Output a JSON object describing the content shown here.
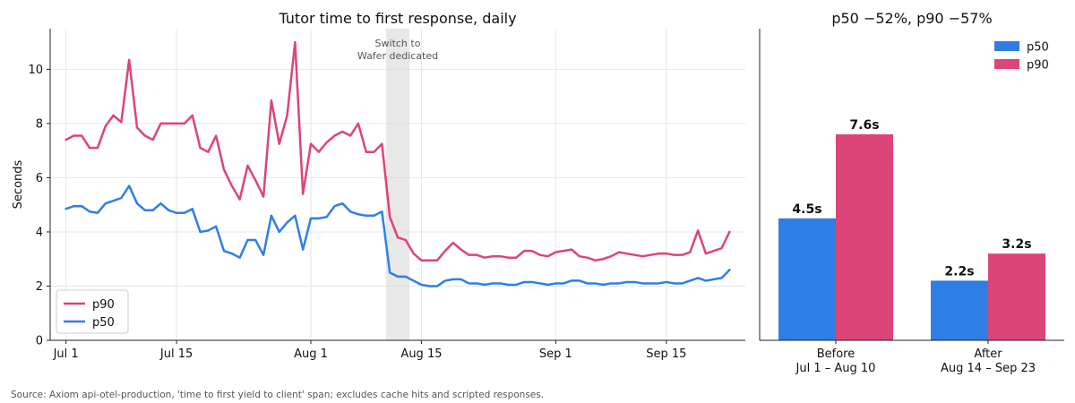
{
  "footnote": "Source: Axiom api-otel-production, 'time to first yield to client' span; excludes cache hits and scripted responses.",
  "chart_data": [
    {
      "type": "line",
      "title": "Tutor time to first response, daily",
      "xlabel": "",
      "ylabel": "Seconds",
      "ylim": [
        0,
        11.5
      ],
      "yticks": [
        0,
        2,
        4,
        6,
        8,
        10
      ],
      "xticks": [
        {
          "date": "2024-07-01",
          "label": "Jul 1"
        },
        {
          "date": "2024-07-15",
          "label": "Jul 15"
        },
        {
          "date": "2024-08-01",
          "label": "Aug 1"
        },
        {
          "date": "2024-08-15",
          "label": "Aug 15"
        },
        {
          "date": "2024-09-01",
          "label": "Sep 1"
        },
        {
          "date": "2024-09-15",
          "label": "Sep 15"
        }
      ],
      "grid": true,
      "legend": "bottom-left",
      "annotation": {
        "lines": [
          "Switch to",
          "Wafer dedicated"
        ],
        "x_start": "2024-08-11",
        "x_end": "2024-08-13"
      },
      "x": [
        "2024-07-01",
        "2024-07-02",
        "2024-07-03",
        "2024-07-04",
        "2024-07-05",
        "2024-07-06",
        "2024-07-07",
        "2024-07-08",
        "2024-07-09",
        "2024-07-10",
        "2024-07-11",
        "2024-07-12",
        "2024-07-13",
        "2024-07-14",
        "2024-07-15",
        "2024-07-16",
        "2024-07-17",
        "2024-07-18",
        "2024-07-19",
        "2024-07-20",
        "2024-07-21",
        "2024-07-22",
        "2024-07-23",
        "2024-07-24",
        "2024-07-25",
        "2024-07-26",
        "2024-07-27",
        "2024-07-28",
        "2024-07-29",
        "2024-07-30",
        "2024-07-31",
        "2024-08-01",
        "2024-08-02",
        "2024-08-03",
        "2024-08-04",
        "2024-08-05",
        "2024-08-06",
        "2024-08-07",
        "2024-08-08",
        "2024-08-09",
        "2024-08-10",
        "2024-08-11",
        "2024-08-12",
        "2024-08-13",
        "2024-08-14",
        "2024-08-15",
        "2024-08-16",
        "2024-08-17",
        "2024-08-18",
        "2024-08-19",
        "2024-08-20",
        "2024-08-21",
        "2024-08-22",
        "2024-08-23",
        "2024-08-24",
        "2024-08-25",
        "2024-08-26",
        "2024-08-27",
        "2024-08-28",
        "2024-08-29",
        "2024-08-30",
        "2024-08-31",
        "2024-09-01",
        "2024-09-02",
        "2024-09-03",
        "2024-09-04",
        "2024-09-05",
        "2024-09-06",
        "2024-09-07",
        "2024-09-08",
        "2024-09-09",
        "2024-09-10",
        "2024-09-11",
        "2024-09-12",
        "2024-09-13",
        "2024-09-14",
        "2024-09-15",
        "2024-09-16",
        "2024-09-17",
        "2024-09-18",
        "2024-09-19",
        "2024-09-20",
        "2024-09-21",
        "2024-09-22",
        "2024-09-23"
      ],
      "series": [
        {
          "name": "p90",
          "color": "#dd4477",
          "values": [
            7.4,
            7.55,
            7.55,
            7.1,
            7.1,
            7.9,
            8.3,
            8.05,
            10.35,
            7.85,
            7.55,
            7.4,
            8.0,
            8.0,
            8.0,
            8.0,
            8.3,
            7.1,
            6.95,
            7.55,
            6.3,
            5.7,
            5.2,
            6.45,
            5.9,
            5.3,
            8.85,
            7.25,
            8.3,
            11.0,
            5.4,
            7.25,
            6.95,
            7.3,
            7.55,
            7.7,
            7.55,
            8.0,
            6.95,
            6.95,
            7.25,
            4.55,
            3.8,
            3.7,
            3.2,
            2.95,
            2.95,
            2.95,
            3.3,
            3.6,
            3.35,
            3.15,
            3.15,
            3.05,
            3.1,
            3.1,
            3.05,
            3.05,
            3.3,
            3.3,
            3.15,
            3.1,
            3.25,
            3.3,
            3.35,
            3.1,
            3.05,
            2.95,
            3.0,
            3.1,
            3.25,
            3.2,
            3.15,
            3.1,
            3.15,
            3.2,
            3.2,
            3.15,
            3.15,
            3.25,
            4.05,
            3.2,
            3.3,
            3.4,
            4.0
          ]
        },
        {
          "name": "p50",
          "color": "#2f7ee6",
          "values": [
            4.85,
            4.95,
            4.95,
            4.75,
            4.7,
            5.05,
            5.15,
            5.25,
            5.7,
            5.05,
            4.8,
            4.8,
            5.05,
            4.8,
            4.7,
            4.7,
            4.85,
            4.0,
            4.05,
            4.2,
            3.3,
            3.2,
            3.05,
            3.7,
            3.7,
            3.15,
            4.6,
            4.0,
            4.35,
            4.6,
            3.35,
            4.5,
            4.5,
            4.55,
            4.95,
            5.05,
            4.75,
            4.65,
            4.6,
            4.6,
            4.75,
            2.5,
            2.35,
            2.35,
            2.2,
            2.05,
            2.0,
            2.0,
            2.2,
            2.25,
            2.25,
            2.1,
            2.1,
            2.05,
            2.1,
            2.1,
            2.05,
            2.05,
            2.15,
            2.15,
            2.1,
            2.05,
            2.1,
            2.1,
            2.2,
            2.2,
            2.1,
            2.1,
            2.05,
            2.1,
            2.1,
            2.15,
            2.15,
            2.1,
            2.1,
            2.1,
            2.15,
            2.1,
            2.1,
            2.2,
            2.3,
            2.2,
            2.25,
            2.3,
            2.6
          ]
        }
      ]
    },
    {
      "type": "bar",
      "title": "p50 −52%, p90 −57%",
      "categories": [
        [
          "Before",
          "Jul 1 – Aug 10"
        ],
        [
          "After",
          "Aug 14 – Sep 23"
        ]
      ],
      "ylim": [
        0,
        11.5
      ],
      "legend": "top-right",
      "series": [
        {
          "name": "p50",
          "color": "#2f7ee6",
          "values": [
            4.5,
            2.2
          ],
          "labels": [
            "4.5s",
            "2.2s"
          ]
        },
        {
          "name": "p90",
          "color": "#dd4477",
          "values": [
            7.6,
            3.2
          ],
          "labels": [
            "7.6s",
            "3.2s"
          ]
        }
      ]
    }
  ]
}
